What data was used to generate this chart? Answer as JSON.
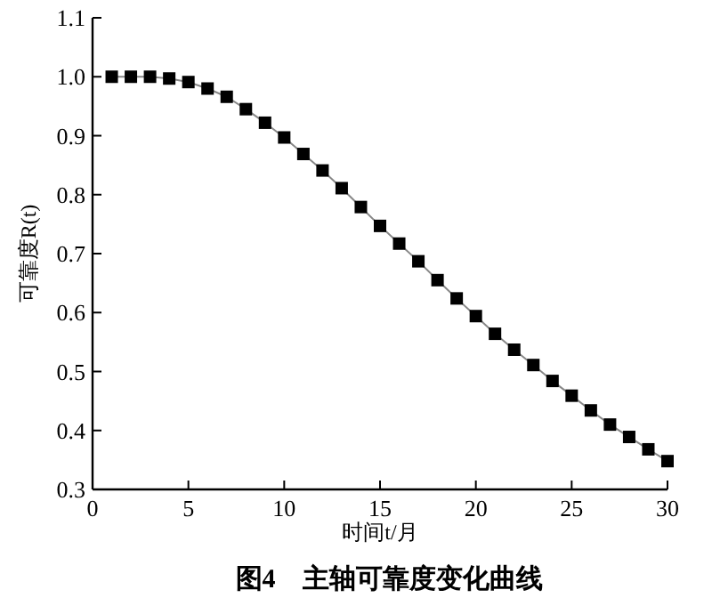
{
  "chart_data": {
    "type": "line",
    "title": "图4　主轴可靠度变化曲线",
    "xlabel": "时间t/月",
    "ylabel": "可靠度R(t)",
    "x": [
      1,
      2,
      3,
      4,
      5,
      6,
      7,
      8,
      9,
      10,
      11,
      12,
      13,
      14,
      15,
      16,
      17,
      18,
      19,
      20,
      21,
      22,
      23,
      24,
      25,
      26,
      27,
      28,
      29,
      30
    ],
    "series": [
      {
        "color": "#000000",
        "values": [
          1.0,
          1.0,
          1.0,
          0.997,
          0.991,
          0.98,
          0.966,
          0.945,
          0.922,
          0.897,
          0.869,
          0.841,
          0.811,
          0.779,
          0.747,
          0.717,
          0.687,
          0.655,
          0.624,
          0.594,
          0.564,
          0.537,
          0.511,
          0.484,
          0.459,
          0.434,
          0.41,
          0.389,
          0.368,
          0.348
        ]
      }
    ],
    "xlim": [
      0,
      30
    ],
    "ylim": [
      0.3,
      1.1
    ],
    "xticks": [
      0,
      5,
      10,
      15,
      20,
      25,
      30
    ],
    "yticks": [
      0.3,
      0.4,
      0.5,
      0.6,
      0.7,
      0.8,
      0.9,
      {
        "value": 1,
        "label": "1.0"
      },
      1.1
    ],
    "marker": "square",
    "line_style": "solid",
    "grid": false
  }
}
